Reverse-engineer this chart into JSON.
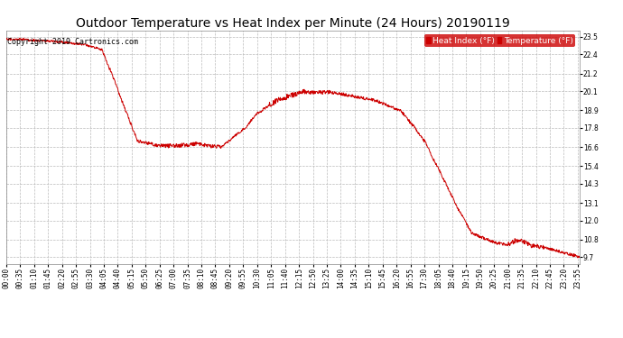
{
  "title": "Outdoor Temperature vs Heat Index per Minute (24 Hours) 20190119",
  "copyright": "Copyright 2019 Cartronics.com",
  "legend_labels": [
    "Heat Index (°F)",
    "Temperature (°F)"
  ],
  "line_color": "#cc0000",
  "background_color": "#ffffff",
  "grid_color": "#bbbbbb",
  "ylabel_right_ticks": [
    9.7,
    10.8,
    12.0,
    13.1,
    14.3,
    15.4,
    16.6,
    17.8,
    18.9,
    20.1,
    21.2,
    22.4,
    23.5
  ],
  "ylim": [
    9.3,
    23.9
  ],
  "xlim_minutes": [
    0,
    1439
  ],
  "xtick_labels": [
    "00:00",
    "00:35",
    "01:10",
    "01:45",
    "02:20",
    "02:55",
    "03:30",
    "04:05",
    "04:40",
    "05:15",
    "05:50",
    "06:25",
    "07:00",
    "07:35",
    "08:10",
    "08:45",
    "09:20",
    "09:55",
    "10:30",
    "11:05",
    "11:40",
    "12:15",
    "12:50",
    "13:25",
    "14:00",
    "14:35",
    "15:10",
    "15:45",
    "16:20",
    "16:55",
    "17:30",
    "18:05",
    "18:40",
    "19:15",
    "19:50",
    "20:25",
    "21:00",
    "21:35",
    "22:10",
    "22:45",
    "23:20",
    "23:55"
  ],
  "title_fontsize": 10,
  "copyright_fontsize": 6,
  "tick_fontsize": 5.5,
  "legend_fontsize": 6.5
}
